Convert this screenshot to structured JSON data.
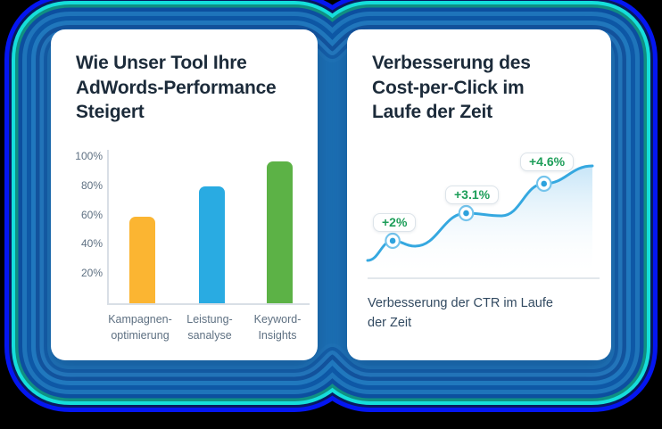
{
  "background": {
    "base_color": "#000000",
    "inner_fill": "#1C70B5",
    "contour_colors": [
      "#0416F2",
      "#081A5E",
      "#15DEDB",
      "#109082",
      "#0C4F9F",
      "#1E74BA",
      "#0E58A6",
      "#2179BF",
      "#13549F",
      "#2478BE",
      "#155FA9",
      "#1F73B8"
    ]
  },
  "cards": [
    {
      "title": "Wie Unser Tool Ihre\nAdWords-Performance\nSteigert"
    },
    {
      "title": "Verbesserung des\nCost-per-Click im\nLaufe der Zeit",
      "caption": "Verbesserung der CTR im Laufe\nder Zeit"
    }
  ],
  "chart_data": [
    {
      "type": "bar",
      "title": "Wie Unser Tool Ihre AdWords-Performance Steigert",
      "categories": [
        "Kampagnen-optimierung",
        "Leistungsanalyse",
        "Keyword-Insights"
      ],
      "category_label_lines": [
        [
          "Kampagnen-",
          "optimierung"
        ],
        [
          "Leistung-",
          "sanalyse"
        ],
        [
          "Keyword-",
          "Insights"
        ]
      ],
      "values": [
        59,
        80,
        97
      ],
      "unit": "%",
      "bar_colors": [
        "#FBB532",
        "#29ABE2",
        "#5CB246"
      ],
      "yticks": [
        20,
        40,
        60,
        80,
        100
      ],
      "ytick_labels": [
        "20%",
        "40%",
        "60%",
        "80%",
        "100%"
      ],
      "ylim": [
        0,
        105
      ],
      "xlabel": "",
      "ylabel": "",
      "grid": false,
      "legend": false
    },
    {
      "type": "line",
      "title": "Verbesserung des Cost-per-Click im Laufe der Zeit",
      "caption": "Verbesserung der CTR im Laufe der Zeit",
      "annotations": [
        "+2%",
        "+3.1%",
        "+4.6%"
      ],
      "annotation_values": [
        2,
        3.1,
        4.6
      ],
      "annotation_text_color": "#1D9E59",
      "line_color": "#35A8E0",
      "marker_fill": "#2EA2DD",
      "marker_ring": "#74C4EC",
      "area_fill": true,
      "grid": false,
      "legend": false,
      "points": [
        [
          0,
          122
        ],
        [
          29,
          100
        ],
        [
          55,
          106
        ],
        [
          114,
          69
        ],
        [
          155,
          72
        ],
        [
          204,
          36
        ],
        [
          260,
          16
        ]
      ],
      "marker_point_indices": [
        1,
        3,
        5
      ]
    }
  ]
}
